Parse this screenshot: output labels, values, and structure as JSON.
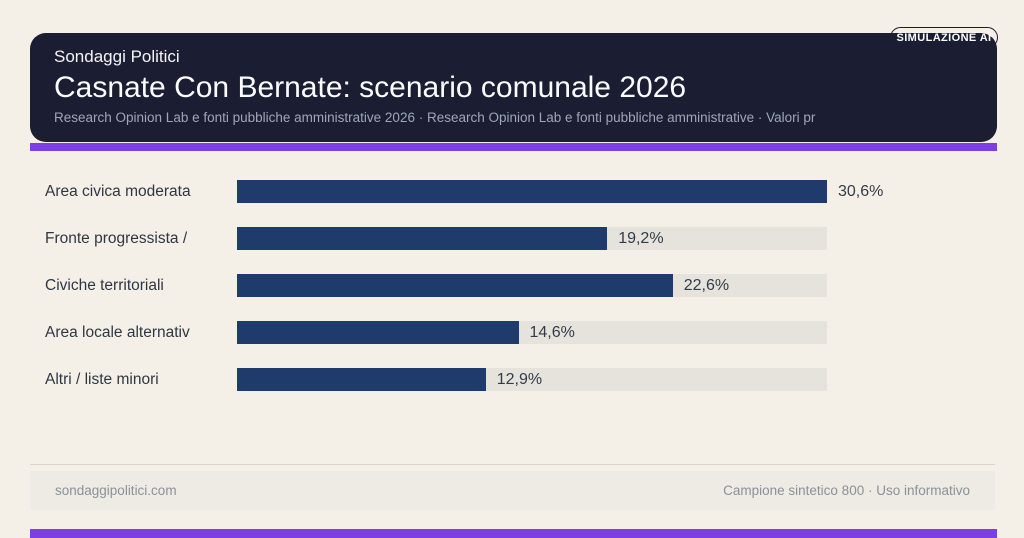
{
  "badge": {
    "label": "SIMULAZIONE AI"
  },
  "header": {
    "kicker": "Sondaggi Politici",
    "title": "Casnate Con Bernate: scenario comunale 2026",
    "subtitle": "Research Opinion Lab e fonti pubbliche amministrative 2026 · Research Opinion Lab e fonti pubbliche amministrative · Valori pr"
  },
  "chart_data": {
    "type": "bar",
    "orientation": "horizontal",
    "title": "Casnate Con Bernate: scenario comunale 2026",
    "categories": [
      "Area civica moderata",
      "Fronte progressista /",
      "Civiche territoriali",
      "Area locale alternativ",
      "Altri / liste minori"
    ],
    "values": [
      30.6,
      19.2,
      22.6,
      14.6,
      12.9
    ],
    "value_labels": [
      "30,6%",
      "19,2%",
      "22,6%",
      "14,6%",
      "12,9%"
    ],
    "xlim": [
      0,
      30.6
    ],
    "grid": false,
    "legend": "none",
    "colors": {
      "bar": "#1f3b6b",
      "track": "#e6e3dc",
      "accent": "#7c3fe4",
      "header_bg": "#1b1e32",
      "page_bg": "#f4efe7"
    }
  },
  "footer": {
    "left": "sondaggipolitici.com",
    "right": "Campione sintetico 800 · Uso informativo"
  }
}
